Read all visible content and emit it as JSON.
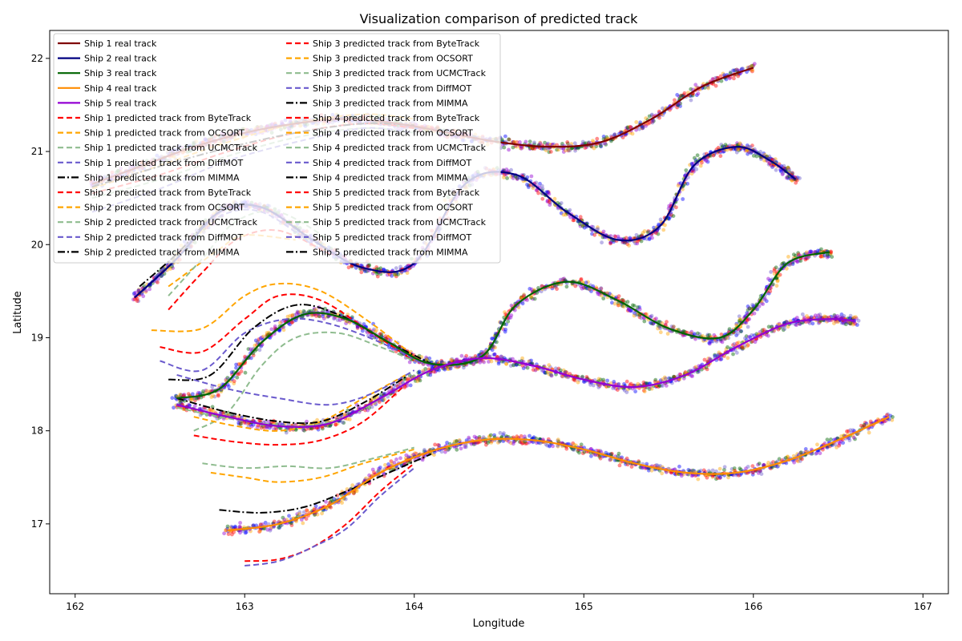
{
  "chart_data": {
    "type": "line",
    "title": "Visualization comparison of predicted track",
    "xlabel": "Longitude",
    "ylabel": "Latitude",
    "xlim": [
      161.85,
      167.15
    ],
    "ylim": [
      16.25,
      22.3
    ],
    "xticks": [
      "162",
      "163",
      "164",
      "165",
      "166",
      "167"
    ],
    "yticks": [
      "17",
      "18",
      "19",
      "20",
      "21",
      "22"
    ],
    "grid": false,
    "legend_position": "upper-left",
    "colors": {
      "ship1_real": "#800000",
      "ship2_real": "#000080",
      "ship3_real": "#006400",
      "ship4_real": "#ff8c00",
      "ship5_real": "#9400d3",
      "ByteTrack": "#ff0000",
      "OCSORT": "#ffa500",
      "UCMCTrack": "#8fbc8f",
      "DiffMOT": "#6a5acd",
      "MIMMA": "#000000"
    },
    "series": [
      {
        "name": "Ship 1 real track",
        "ship": 1,
        "kind": "real",
        "color": "#800000",
        "x": [
          162.1,
          162.4,
          162.7,
          163.0,
          163.3,
          163.6,
          163.9,
          164.2,
          164.5,
          164.8,
          165.1,
          165.4,
          165.7,
          166.0
        ],
        "y": [
          20.65,
          20.85,
          21.05,
          21.2,
          21.3,
          21.35,
          21.3,
          21.2,
          21.1,
          21.05,
          21.1,
          21.35,
          21.7,
          21.9
        ]
      },
      {
        "name": "Ship 2 real track",
        "ship": 2,
        "kind": "real",
        "color": "#000080",
        "x": [
          162.35,
          162.6,
          162.85,
          163.1,
          163.4,
          163.7,
          164.0,
          164.3,
          164.6,
          164.9,
          165.2,
          165.45,
          165.65,
          165.9,
          166.1,
          166.25
        ],
        "y": [
          19.43,
          19.85,
          20.35,
          20.4,
          20.05,
          19.75,
          19.8,
          20.65,
          20.75,
          20.35,
          20.05,
          20.2,
          20.85,
          21.05,
          20.9,
          20.7
        ]
      },
      {
        "name": "Ship 3 real track",
        "ship": 3,
        "kind": "real",
        "color": "#006400",
        "x": [
          162.6,
          162.85,
          163.1,
          163.35,
          163.6,
          163.85,
          164.1,
          164.4,
          164.6,
          164.9,
          165.2,
          165.5,
          165.8,
          166.0,
          166.2,
          166.45
        ],
        "y": [
          18.35,
          18.45,
          18.95,
          19.25,
          19.2,
          18.95,
          18.72,
          18.8,
          19.35,
          19.6,
          19.4,
          19.1,
          19.0,
          19.3,
          19.8,
          19.92
        ]
      },
      {
        "name": "Ship 4 real track",
        "ship": 4,
        "kind": "real",
        "color": "#ff8c00",
        "x": [
          162.9,
          163.2,
          163.5,
          163.8,
          164.1,
          164.4,
          164.7,
          165.0,
          165.3,
          165.6,
          165.9,
          166.2,
          166.5,
          166.8
        ],
        "y": [
          16.93,
          17.0,
          17.2,
          17.55,
          17.78,
          17.9,
          17.9,
          17.8,
          17.65,
          17.55,
          17.55,
          17.68,
          17.9,
          18.15
        ]
      },
      {
        "name": "Ship 5 real track",
        "ship": 5,
        "kind": "real",
        "color": "#9400d3",
        "x": [
          162.6,
          162.9,
          163.2,
          163.5,
          163.8,
          164.1,
          164.4,
          164.7,
          165.0,
          165.3,
          165.6,
          165.9,
          166.2,
          166.45,
          166.6
        ],
        "y": [
          18.28,
          18.15,
          18.05,
          18.08,
          18.35,
          18.65,
          18.78,
          18.7,
          18.55,
          18.47,
          18.6,
          18.9,
          19.15,
          19.2,
          19.18
        ]
      },
      {
        "name": "Ship 1 predicted track from ByteTrack",
        "ship": 1,
        "kind": "pred",
        "method": "ByteTrack",
        "color": "#ff0000",
        "x": [
          162.1,
          162.5,
          162.9,
          163.3,
          163.7,
          164.0
        ],
        "y": [
          20.55,
          20.75,
          21.0,
          21.2,
          21.3,
          21.25
        ]
      },
      {
        "name": "Ship 1 predicted track from OCSORT",
        "ship": 1,
        "kind": "pred",
        "method": "OCSORT",
        "color": "#ffa500",
        "x": [
          162.1,
          162.5,
          162.9,
          163.3,
          163.7,
          164.0
        ],
        "y": [
          20.6,
          20.85,
          21.1,
          21.3,
          21.4,
          21.35
        ]
      },
      {
        "name": "Ship 1 predicted track from UCMCTrack",
        "ship": 1,
        "kind": "pred",
        "method": "UCMCTrack",
        "color": "#8fbc8f",
        "x": [
          162.1,
          162.5,
          162.9,
          163.3,
          163.7,
          164.0
        ],
        "y": [
          20.5,
          20.7,
          20.95,
          21.15,
          21.25,
          21.2
        ]
      },
      {
        "name": "Ship 1 predicted track from DiffMOT",
        "ship": 1,
        "kind": "pred",
        "method": "DiffMOT",
        "color": "#6a5acd",
        "x": [
          162.1,
          162.5,
          162.9,
          163.3,
          163.7,
          164.0
        ],
        "y": [
          20.35,
          20.6,
          20.9,
          21.1,
          21.25,
          21.2
        ]
      },
      {
        "name": "Ship 1 predicted track from MIMMA",
        "ship": 1,
        "kind": "pred",
        "method": "MIMMA",
        "color": "#000000",
        "x": [
          162.1,
          162.5,
          162.9,
          163.3,
          163.7,
          164.0
        ],
        "y": [
          20.62,
          20.84,
          21.04,
          21.2,
          21.3,
          21.28
        ]
      },
      {
        "name": "Ship 2 predicted track from ByteTrack",
        "ship": 2,
        "kind": "pred",
        "method": "ByteTrack",
        "color": "#ff0000",
        "x": [
          162.55,
          162.75,
          162.95,
          163.2,
          163.5
        ],
        "y": [
          19.3,
          19.7,
          20.05,
          20.15,
          19.9
        ]
      },
      {
        "name": "Ship 2 predicted track from OCSORT",
        "ship": 2,
        "kind": "pred",
        "method": "OCSORT",
        "color": "#ffa500",
        "x": [
          162.55,
          162.7,
          162.85,
          163.0,
          163.3
        ],
        "y": [
          19.55,
          19.75,
          19.95,
          20.1,
          20.05
        ]
      },
      {
        "name": "Ship 2 predicted track from UCMCTrack",
        "ship": 2,
        "kind": "pred",
        "method": "UCMCTrack",
        "color": "#8fbc8f",
        "x": [
          162.55,
          162.75,
          162.95,
          163.2,
          163.5
        ],
        "y": [
          19.45,
          19.85,
          20.25,
          20.35,
          20.05
        ]
      },
      {
        "name": "Ship 2 predicted track from DiffMOT",
        "ship": 2,
        "kind": "pred",
        "method": "DiffMOT",
        "color": "#6a5acd",
        "x": [
          162.4,
          162.6,
          162.85,
          163.1,
          163.4
        ],
        "y": [
          19.5,
          19.9,
          20.3,
          20.35,
          20.0
        ]
      },
      {
        "name": "Ship 2 predicted track from MIMMA",
        "ship": 2,
        "kind": "pred",
        "method": "MIMMA",
        "color": "#000000",
        "x": [
          162.38,
          162.6,
          162.85,
          163.1,
          163.4
        ],
        "y": [
          19.55,
          19.9,
          20.35,
          20.4,
          20.05
        ]
      },
      {
        "name": "Ship 3 predicted track from ByteTrack",
        "ship": 3,
        "kind": "pred",
        "method": "ByteTrack",
        "color": "#ff0000",
        "x": [
          162.5,
          162.75,
          163.0,
          163.2,
          163.45,
          163.75,
          164.0
        ],
        "y": [
          18.9,
          18.85,
          19.2,
          19.45,
          19.4,
          19.05,
          18.75
        ]
      },
      {
        "name": "Ship 3 predicted track from OCSORT",
        "ship": 3,
        "kind": "pred",
        "method": "OCSORT",
        "color": "#ffa500",
        "x": [
          162.45,
          162.75,
          163.0,
          163.2,
          163.45,
          163.75,
          164.0
        ],
        "y": [
          19.08,
          19.1,
          19.45,
          19.58,
          19.5,
          19.15,
          18.8
        ]
      },
      {
        "name": "Ship 3 predicted track from UCMCTrack",
        "ship": 3,
        "kind": "pred",
        "method": "UCMCTrack",
        "color": "#8fbc8f",
        "x": [
          162.7,
          162.9,
          163.1,
          163.3,
          163.55,
          163.8,
          164.0
        ],
        "y": [
          18.0,
          18.2,
          18.7,
          19.0,
          19.05,
          18.9,
          18.75
        ]
      },
      {
        "name": "Ship 3 predicted track from DiffMOT",
        "ship": 3,
        "kind": "pred",
        "method": "DiffMOT",
        "color": "#6a5acd",
        "x": [
          162.5,
          162.75,
          163.0,
          163.25,
          163.5,
          163.8,
          164.05
        ],
        "y": [
          18.75,
          18.65,
          19.05,
          19.2,
          19.15,
          18.95,
          18.72
        ]
      },
      {
        "name": "Ship 3 predicted track from MIMMA",
        "ship": 3,
        "kind": "pred",
        "method": "MIMMA",
        "color": "#000000",
        "x": [
          162.55,
          162.8,
          163.05,
          163.3,
          163.55,
          163.85,
          164.1
        ],
        "y": [
          18.55,
          18.6,
          19.1,
          19.35,
          19.25,
          18.95,
          18.72
        ]
      },
      {
        "name": "Ship 4 predicted track from ByteTrack",
        "ship": 4,
        "kind": "pred",
        "method": "ByteTrack",
        "color": "#ff0000",
        "x": [
          163.0,
          163.2,
          163.4,
          163.6,
          163.8,
          164.0
        ],
        "y": [
          16.6,
          16.62,
          16.75,
          17.0,
          17.35,
          17.65
        ]
      },
      {
        "name": "Ship 4 predicted track from OCSORT",
        "ship": 4,
        "kind": "pred",
        "method": "OCSORT",
        "color": "#ffa500",
        "x": [
          162.8,
          163.0,
          163.2,
          163.45,
          163.7,
          164.0
        ],
        "y": [
          17.55,
          17.5,
          17.45,
          17.5,
          17.65,
          17.8
        ]
      },
      {
        "name": "Ship 4 predicted track from UCMCTrack",
        "ship": 4,
        "kind": "pred",
        "method": "UCMCTrack",
        "color": "#8fbc8f",
        "x": [
          162.75,
          163.0,
          163.25,
          163.5,
          163.75,
          164.0
        ],
        "y": [
          17.65,
          17.6,
          17.62,
          17.6,
          17.7,
          17.82
        ]
      },
      {
        "name": "Ship 4 predicted track from DiffMOT",
        "ship": 4,
        "kind": "pred",
        "method": "DiffMOT",
        "color": "#6a5acd",
        "x": [
          163.0,
          163.2,
          163.4,
          163.6,
          163.8,
          164.0
        ],
        "y": [
          16.55,
          16.6,
          16.75,
          16.95,
          17.3,
          17.6
        ]
      },
      {
        "name": "Ship 4 predicted track from MIMMA",
        "ship": 4,
        "kind": "pred",
        "method": "MIMMA",
        "color": "#000000",
        "x": [
          162.85,
          163.1,
          163.35,
          163.6,
          163.85,
          164.1
        ],
        "y": [
          17.15,
          17.12,
          17.18,
          17.35,
          17.55,
          17.75
        ]
      },
      {
        "name": "Ship 5 predicted track from ByteTrack",
        "ship": 5,
        "kind": "pred",
        "method": "ByteTrack",
        "color": "#ff0000",
        "x": [
          162.7,
          162.95,
          163.2,
          163.45,
          163.7,
          163.95
        ],
        "y": [
          17.95,
          17.88,
          17.85,
          17.9,
          18.1,
          18.5
        ]
      },
      {
        "name": "Ship 5 predicted track from OCSORT",
        "ship": 5,
        "kind": "pred",
        "method": "OCSORT",
        "color": "#ffa500",
        "x": [
          162.7,
          162.95,
          163.2,
          163.45,
          163.7,
          163.95
        ],
        "y": [
          18.15,
          18.05,
          18.0,
          18.1,
          18.35,
          18.6
        ]
      },
      {
        "name": "Ship 5 predicted track from UCMCTrack",
        "ship": 5,
        "kind": "pred",
        "method": "UCMCTrack",
        "color": "#8fbc8f",
        "x": [
          162.6,
          162.85,
          163.1,
          163.35,
          163.6,
          163.85,
          164.05
        ],
        "y": [
          18.25,
          18.15,
          18.08,
          18.05,
          18.15,
          18.4,
          18.62
        ]
      },
      {
        "name": "Ship 5 predicted track from DiffMOT",
        "ship": 5,
        "kind": "pred",
        "method": "DiffMOT",
        "color": "#6a5acd",
        "x": [
          162.6,
          162.9,
          163.2,
          163.5,
          163.75,
          164.0
        ],
        "y": [
          18.6,
          18.45,
          18.35,
          18.28,
          18.4,
          18.65
        ]
      },
      {
        "name": "Ship 5 predicted track from MIMMA",
        "ship": 5,
        "kind": "pred",
        "method": "MIMMA",
        "color": "#000000",
        "x": [
          162.6,
          162.9,
          163.2,
          163.45,
          163.7,
          163.95
        ],
        "y": [
          18.35,
          18.2,
          18.1,
          18.1,
          18.3,
          18.58
        ]
      }
    ]
  }
}
